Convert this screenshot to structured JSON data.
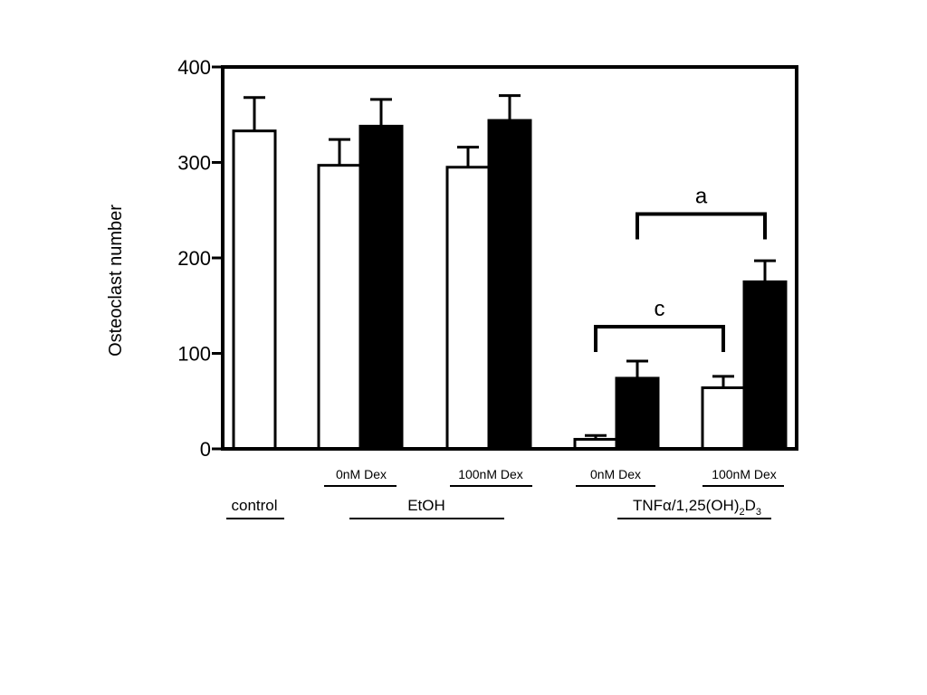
{
  "chart_data": {
    "type": "bar",
    "ylabel": "Osteoclast number",
    "ylim": [
      0,
      400
    ],
    "yticks": [
      "0",
      "100",
      "200",
      "300",
      "400"
    ],
    "grid": false,
    "colors": {
      "open": "#ffffff",
      "filled": "#000000",
      "stroke": "#000000"
    },
    "bars": [
      {
        "category": "control",
        "fill": "open",
        "value": 333,
        "error": 35
      },
      {
        "category": "EtOH 0nM Dex",
        "fill": "open",
        "value": 297,
        "error": 27
      },
      {
        "category": "EtOH 0nM Dex",
        "fill": "filled",
        "value": 338,
        "error": 28
      },
      {
        "category": "EtOH 100nM Dex",
        "fill": "open",
        "value": 295,
        "error": 21
      },
      {
        "category": "EtOH 100nM Dex",
        "fill": "filled",
        "value": 344,
        "error": 26
      },
      {
        "category": "TNFα/1,25(OH)2D3 0nM Dex",
        "fill": "open",
        "value": 10,
        "error": 4
      },
      {
        "category": "TNFα/1,25(OH)2D3 0nM Dex",
        "fill": "filled",
        "value": 74,
        "error": 18
      },
      {
        "category": "TNFα/1,25(OH)2D3 100nM Dex",
        "fill": "open",
        "value": 64,
        "error": 12
      },
      {
        "category": "TNFα/1,25(OH)2D3 100nM Dex",
        "fill": "filled",
        "value": 175,
        "error": 22
      }
    ],
    "dex_labels": [
      "0nM Dex",
      "100nM Dex",
      "0nM Dex",
      "100nM Dex"
    ],
    "condition_labels": {
      "control": "control",
      "etoh": "EtOH",
      "tnf_prefix": "TNFα/1,25(OH)",
      "tnf_sub1": "2",
      "tnf_mid": "D",
      "tnf_sub2": "3"
    },
    "annotations": [
      {
        "label": "a",
        "from_bar": 6,
        "to_bar": 8,
        "level": 246
      },
      {
        "label": "c",
        "from_bar": 5,
        "to_bar": 7,
        "level": 128
      }
    ]
  }
}
